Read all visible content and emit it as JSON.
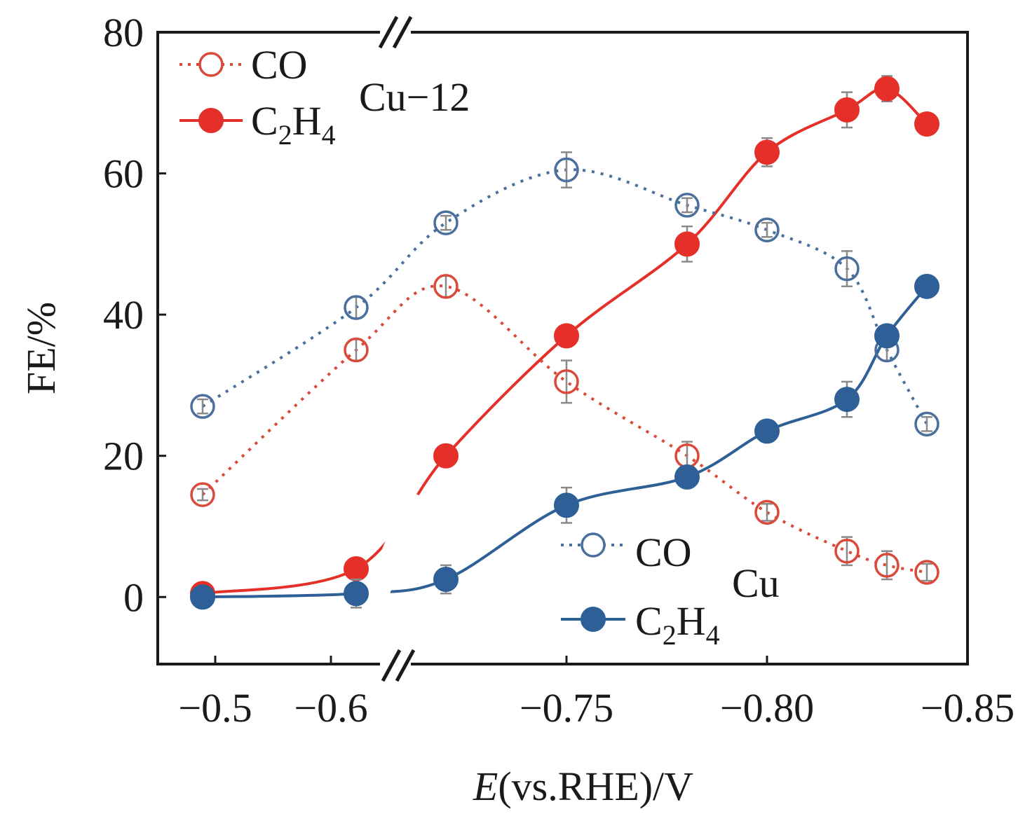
{
  "chart_data": {
    "type": "line",
    "ylabel": "FE/%",
    "xlabel_italic": "E",
    "xlabel_rest": "(vs.RHE)/V",
    "y_ticks": [
      "0",
      "20",
      "40",
      "60",
      "80"
    ],
    "x_ticks": [
      "−0.5",
      "−0.6",
      "−0.75",
      "−0.80",
      "−0.85"
    ],
    "ylim": [
      -9.5,
      80
    ],
    "x_axis_break": true,
    "x": [
      -0.52,
      -0.62,
      -0.68,
      -0.75,
      -0.78,
      -0.8,
      -0.82,
      -0.83,
      -0.84
    ],
    "legend_groups": [
      {
        "name": "Cu−12",
        "position": "top-left"
      },
      {
        "name": "Cu",
        "position": "bottom-right"
      }
    ],
    "series": [
      {
        "name": "CO",
        "group": "Cu−12",
        "color": "#d94a3a",
        "marker": "open-circle",
        "line": "dotted",
        "values": [
          14.5,
          35,
          44,
          30.5,
          20,
          12,
          6.5,
          4.5,
          3.5
        ],
        "errors": [
          0.8,
          1.5,
          1.5,
          3,
          2,
          1.2,
          2,
          2,
          1.2
        ]
      },
      {
        "name": "C",
        "name_sub": "2",
        "name_mid": "H",
        "name_sub2": "4",
        "group": "Cu−12",
        "color": "#e5302a",
        "marker": "filled-circle",
        "line": "solid",
        "values": [
          0.5,
          4,
          20,
          37,
          50,
          63,
          69,
          72,
          67
        ],
        "errors": [
          1,
          1.5,
          1.5,
          1.5,
          2.5,
          2,
          2.5,
          1.8,
          1
        ]
      },
      {
        "name": "CO",
        "group": "Cu",
        "color": "#4a6f9c",
        "marker": "open-circle",
        "line": "dotted",
        "values": [
          27,
          41,
          53,
          60.5,
          55.5,
          52,
          46.5,
          35,
          24.5
        ],
        "errors": [
          1,
          1.5,
          1,
          2.5,
          1,
          1,
          2.5,
          1.5,
          1
        ]
      },
      {
        "name": "C",
        "name_sub": "2",
        "name_mid": "H",
        "name_sub2": "4",
        "group": "Cu",
        "color": "#2e5f97",
        "marker": "filled-circle",
        "line": "solid",
        "values": [
          0,
          0.5,
          2.5,
          13,
          17,
          23.5,
          28,
          37,
          44
        ],
        "errors": [
          1,
          2,
          2,
          2.5,
          1.5,
          1.5,
          2.5,
          1.5,
          1.5
        ]
      }
    ]
  }
}
